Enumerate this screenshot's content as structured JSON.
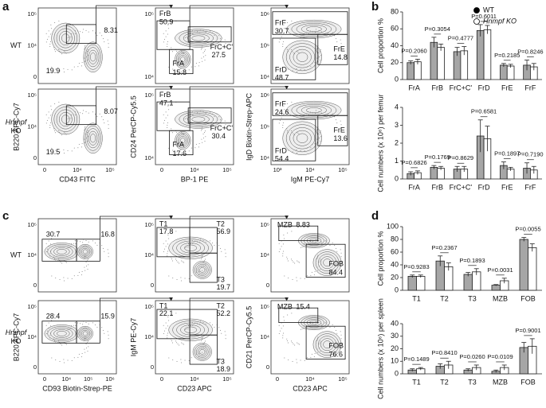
{
  "panel_letters": [
    "a",
    "b",
    "c",
    "d"
  ],
  "flow_panels": [
    {
      "row_labels": [
        [
          "WT"
        ],
        [
          "Hnmpf",
          "KO"
        ]
      ],
      "y_axis_labels": [
        "B220 APC-Cy7",
        "CD24 PerCP-Cy5.5",
        "IgD Biotin-Strep-APC"
      ],
      "x_axis_labels": [
        "CD43 FITC",
        "BP-1 PE",
        "IgM PE-Cy7"
      ],
      "x_ticks": [
        [
          "0",
          "10⁴",
          "10⁵"
        ],
        [
          "0",
          "10⁴",
          "10⁵"
        ],
        [
          "10³",
          "10⁴",
          "10⁵"
        ]
      ],
      "y_ticks": [
        [
          "0",
          "10⁴",
          "10⁵"
        ],
        [
          "10⁴",
          "10⁵"
        ],
        [
          "10⁴",
          "10⁵",
          "10⁶"
        ]
      ],
      "plots": [
        [
          [
            {
              "value": 8.31
            },
            {
              "value": 19.9
            }
          ],
          [
            {
              "name": "FrB",
              "value": 50.9
            },
            {
              "name": "FrC+C'",
              "value": 27.5
            },
            {
              "name": "FrA",
              "value": 15.8
            }
          ],
          [
            {
              "name": "FrF",
              "value": 30.7
            },
            {
              "name": "FrE",
              "value": 14.8
            },
            {
              "name": "FrD",
              "value": 48.7
            }
          ]
        ],
        [
          [
            {
              "value": 8.07
            },
            {
              "value": 19.5
            }
          ],
          [
            {
              "name": "FrB",
              "value": 47.1
            },
            {
              "name": "FrC+C'",
              "value": 30.4
            },
            {
              "name": "FrA",
              "value": 17.6
            }
          ],
          [
            {
              "name": "FrF",
              "value": 24.6
            },
            {
              "name": "FrE",
              "value": 13.6
            },
            {
              "name": "FrD",
              "value": 54.4
            }
          ]
        ]
      ]
    },
    {
      "row_labels": [
        [
          "WT"
        ],
        [
          "Hnmpf",
          "KO"
        ]
      ],
      "y_axis_labels": [
        "B220 APC-Cy7",
        "IgM PE-Cy7",
        "CD21 PerCP-Cy5.5"
      ],
      "x_axis_labels": [
        "CD93 Biotin-Strep-PE",
        "CD23 APC",
        "CD23 APC"
      ],
      "x_ticks": [
        [
          "0",
          "10⁴",
          "10⁵",
          "10⁶"
        ],
        [
          "0",
          "10⁴",
          "10⁵"
        ],
        [
          "0",
          "10⁴",
          "10⁵"
        ]
      ],
      "y_ticks": [
        [
          "0",
          "10⁴",
          "10⁵"
        ],
        [
          "0",
          "10⁴",
          "10⁵"
        ],
        [
          "0",
          "10⁴",
          "10⁵"
        ]
      ],
      "plots": [
        [
          [
            {
              "value": 30.7
            },
            {
              "value": 16.8
            }
          ],
          [
            {
              "name": "T1",
              "value": 17.8
            },
            {
              "name": "T2",
              "value": 56.9
            },
            {
              "name": "T3",
              "value": 19.7
            }
          ],
          [
            {
              "name": "MZB",
              "value": 8.83
            },
            {
              "name": "FOB",
              "value": 84.4
            }
          ]
        ],
        [
          [
            {
              "value": 28.4
            },
            {
              "value": 15.9
            }
          ],
          [
            {
              "name": "T1",
              "value": 22.1
            },
            {
              "name": "T2",
              "value": 52.2
            },
            {
              "name": "T3",
              "value": 18.9
            }
          ],
          [
            {
              "name": "MZB",
              "value": 15.4
            },
            {
              "name": "FOB",
              "value": 76.6
            }
          ]
        ]
      ]
    }
  ],
  "chart_data": [
    {
      "type": "bar",
      "y_label": "Cell proportion %",
      "legend": "top-right",
      "categories": [
        "FrA",
        "FrB",
        "FrC+C'",
        "FrD",
        "FrE",
        "FrF"
      ],
      "series": [
        {
          "name": "WT",
          "color": "#a6a6a6",
          "point_color": "#000000",
          "values": [
            20,
            44,
            33,
            58,
            17,
            17
          ],
          "errors": [
            2,
            6,
            5,
            7,
            2,
            6
          ]
        },
        {
          "name": "Hnmpf KO",
          "color": "#ffffff",
          "point_color": "#ffffff",
          "values": [
            21,
            38,
            34,
            59,
            16,
            15
          ],
          "errors": [
            3,
            4,
            5,
            5,
            2,
            4
          ]
        }
      ],
      "p_labels": [
        "P=0.2060",
        "P=0.3054",
        "P=0.4777",
        "P=0.6011",
        "P=0.2185",
        "P=0.8246"
      ],
      "ylim": [
        0,
        80
      ],
      "yticks": [
        0,
        20,
        40,
        60,
        80
      ]
    },
    {
      "type": "bar",
      "y_label": "Cell numbers (x 10⁶) per femur",
      "categories": [
        "FrA",
        "FrB",
        "FrC+C'",
        "FrD",
        "FrE",
        "FrF"
      ],
      "series": [
        {
          "color": "#a6a6a6",
          "values": [
            0.3,
            0.65,
            0.55,
            2.4,
            0.75,
            0.6
          ],
          "errors": [
            0.1,
            0.1,
            0.15,
            0.9,
            0.2,
            0.3
          ]
        },
        {
          "color": "#ffffff",
          "values": [
            0.35,
            0.6,
            0.55,
            2.25,
            0.55,
            0.5
          ],
          "errors": [
            0.1,
            0.1,
            0.15,
            0.7,
            0.1,
            0.2
          ]
        }
      ],
      "p_labels": [
        "P=0.6826",
        "P=0.1769",
        "P=0.8629",
        "P=0.6581",
        "P=0.1897",
        "P=0.7190"
      ],
      "ylim": [
        0,
        4
      ],
      "yticks": [
        0,
        1,
        2,
        3,
        4
      ]
    },
    {
      "type": "bar",
      "y_label": "Cell proportion %",
      "categories": [
        "T1",
        "T2",
        "T3",
        "MZB",
        "FOB"
      ],
      "series": [
        {
          "color": "#a6a6a6",
          "values": [
            22,
            46,
            25,
            8,
            80
          ],
          "errors": [
            2,
            8,
            3,
            1,
            3
          ]
        },
        {
          "color": "#ffffff",
          "values": [
            22,
            37,
            29,
            15,
            67
          ],
          "errors": [
            2,
            6,
            5,
            4,
            6
          ]
        }
      ],
      "p_labels": [
        "P=0.9283",
        "P=0.2367",
        "P=0.1893",
        "P=0.0031",
        "P=0.0055"
      ],
      "ylim": [
        0,
        100
      ],
      "yticks": [
        0,
        20,
        40,
        60,
        80,
        100
      ]
    },
    {
      "type": "bar",
      "y_label": "Cell numbers (x 10⁶) per spleen",
      "categories": [
        "T1",
        "T2",
        "T3",
        "MZB",
        "FOB"
      ],
      "series": [
        {
          "color": "#a6a6a6",
          "values": [
            3,
            6,
            3,
            2,
            21
          ],
          "errors": [
            1,
            2,
            1,
            1,
            4
          ]
        },
        {
          "color": "#ffffff",
          "values": [
            4,
            7,
            5,
            5,
            22
          ],
          "errors": [
            1,
            3,
            2,
            2,
            6
          ]
        }
      ],
      "p_labels": [
        "P=0.1489",
        "P=0.8410",
        "P=0.0260",
        "P=0.0109",
        "P=0.9001"
      ],
      "ylim": [
        0,
        40
      ],
      "yticks": [
        0,
        10,
        20,
        30,
        40
      ]
    }
  ]
}
